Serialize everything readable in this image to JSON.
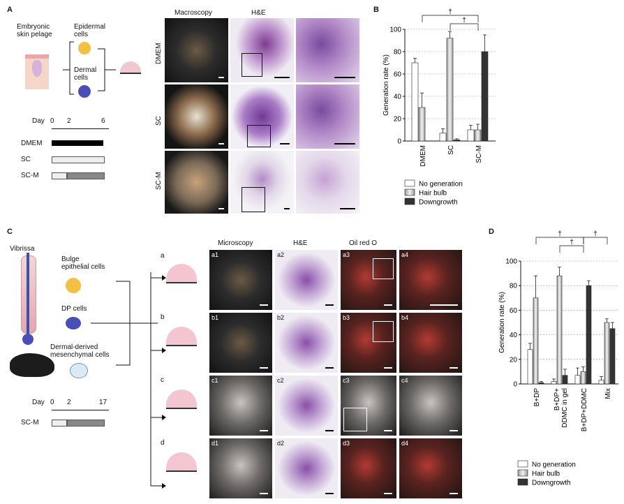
{
  "panels": {
    "A": {
      "letter": "A",
      "schematic": {
        "source": "Embryonic\nskin pelage",
        "epidermal": "Epidermal\ncells",
        "dermal": "Dermal\ncells"
      },
      "timeline": {
        "day_label": "Day",
        "ticks": [
          "0",
          "2",
          "6"
        ],
        "conditions": [
          "DMEM",
          "SC",
          "SC-M"
        ]
      },
      "col_headers": [
        "Macroscopy",
        "H&E"
      ],
      "row_labels": [
        "DMEM",
        "SC",
        "SC-M"
      ]
    },
    "B": {
      "letter": "B",
      "dagger": "†",
      "legend": [
        "No generation",
        "Hair bulb",
        "Downgrowth"
      ]
    },
    "C": {
      "letter": "C",
      "schematic": {
        "vibrissa": "Vibrissa",
        "bulge": "Bulge\nepithelial cells",
        "dp": "DP cells",
        "ddmc": "Dermal-derived\nmesenchymal cells"
      },
      "timeline": {
        "day_label": "Day",
        "ticks": [
          "0",
          "2",
          "17"
        ],
        "condition": "SC-M"
      },
      "col_headers": [
        "Microscopy",
        "H&E",
        "Oil red O"
      ],
      "row_letters": [
        "a",
        "b",
        "c",
        "d"
      ],
      "tiles": [
        [
          "a1",
          "a2",
          "a3",
          "a4"
        ],
        [
          "b1",
          "b2",
          "b3",
          "b4"
        ],
        [
          "c1",
          "c2",
          "c3",
          "c4"
        ],
        [
          "d1",
          "d2",
          "d3",
          "d4"
        ]
      ]
    },
    "D": {
      "letter": "D",
      "dagger": "†",
      "legend": [
        "No generation",
        "Hair bulb",
        "Downgrowth"
      ]
    }
  },
  "chart_data": [
    {
      "id": "B",
      "type": "bar",
      "ylabel": "Generation rate (%)",
      "ylim": [
        0,
        100
      ],
      "yticks": [
        0,
        20,
        40,
        60,
        80,
        100
      ],
      "grid": true,
      "categories": [
        "DMEM",
        "SC",
        "SC-M"
      ],
      "series": [
        {
          "name": "No generation",
          "color": "#ffffff",
          "values": [
            70,
            7,
            10
          ],
          "errors": [
            4,
            4,
            4
          ]
        },
        {
          "name": "Hair bulb",
          "color": "#c8c8c8",
          "values": [
            30,
            92,
            10
          ],
          "errors": [
            13,
            6,
            5
          ]
        },
        {
          "name": "Downgrowth",
          "color": "#333333",
          "values": [
            0,
            1,
            80
          ],
          "errors": [
            0,
            1,
            15
          ]
        }
      ],
      "legend_position": "below"
    },
    {
      "id": "D",
      "type": "bar",
      "ylabel": "Generation rate (%)",
      "ylim": [
        0,
        100
      ],
      "yticks": [
        0,
        20,
        40,
        60,
        80,
        100
      ],
      "grid": true,
      "categories": [
        "B+DP",
        "B+DP+\nDDMC in gel",
        "B+DP+DDMC",
        "Mix"
      ],
      "series": [
        {
          "name": "No generation",
          "color": "#ffffff",
          "values": [
            28,
            2,
            7,
            3
          ],
          "errors": [
            5,
            2,
            6,
            3
          ]
        },
        {
          "name": "Hair bulb",
          "color": "#c8c8c8",
          "values": [
            70,
            88,
            10,
            50
          ],
          "errors": [
            18,
            7,
            4,
            3
          ]
        },
        {
          "name": "Downgrowth",
          "color": "#333333",
          "values": [
            1,
            7,
            80,
            45
          ],
          "errors": [
            1,
            5,
            4,
            5
          ]
        }
      ],
      "legend_position": "below"
    }
  ]
}
